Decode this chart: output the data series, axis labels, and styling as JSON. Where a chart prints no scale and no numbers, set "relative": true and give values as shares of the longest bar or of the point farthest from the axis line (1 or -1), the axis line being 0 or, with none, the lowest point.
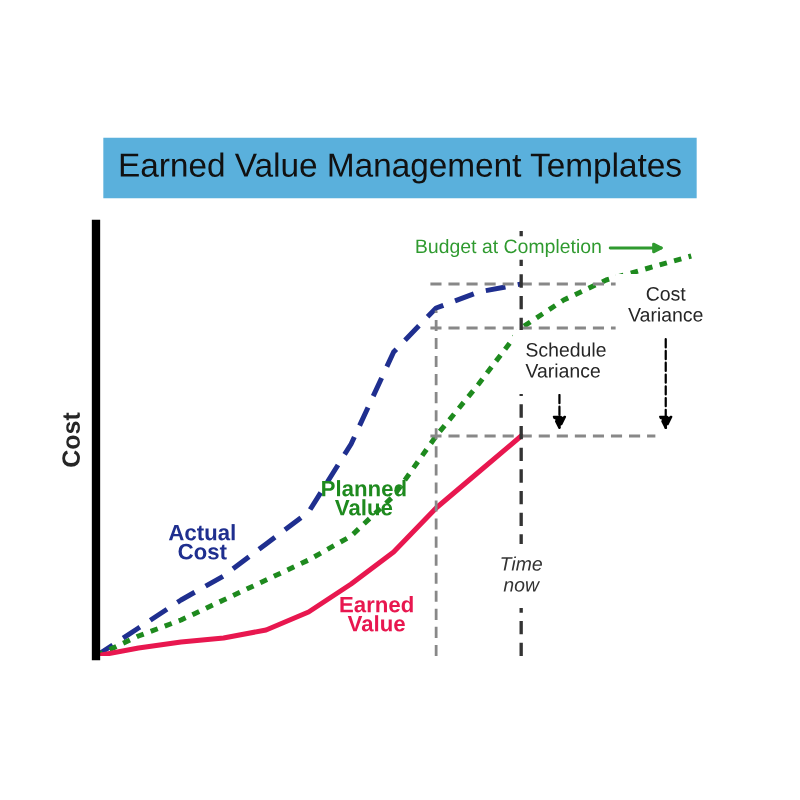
{
  "chart_data": {
    "type": "line",
    "title": "Earned Value Management Templates",
    "ylabel": "Cost",
    "relative": true,
    "categories": [
      null,
      null,
      null,
      null,
      null,
      null,
      null,
      null,
      null,
      null,
      null,
      null,
      null,
      null,
      null
    ],
    "series": [
      {
        "name": "Actual Cost",
        "color": "#1f2f8f",
        "line_style": "dashed",
        "values": [
          0,
          0.07,
          0.14,
          0.2,
          0.28,
          0.36,
          0.53,
          0.76,
          0.87,
          0.91,
          0.93,
          null,
          null,
          null,
          null
        ]
      },
      {
        "name": "Planned Value",
        "color": "#1e8a1e",
        "line_style": "dotted",
        "values": [
          0,
          0.05,
          0.09,
          0.14,
          0.19,
          0.24,
          0.3,
          0.4,
          0.55,
          0.68,
          0.82,
          0.89,
          0.94,
          0.97,
          1
        ]
      },
      {
        "name": "Earned Value",
        "color": "#e8174f",
        "line_style": "solid",
        "values": [
          0,
          0.02,
          0.035,
          0.045,
          0.065,
          0.11,
          0.18,
          0.26,
          0.37,
          0.46,
          0.55,
          null,
          null,
          null,
          null
        ]
      }
    ],
    "ref_lines": [
      {
        "axis": "y",
        "value": 0.55,
        "label": null,
        "color": "#888888",
        "line_style": "dashed"
      },
      {
        "axis": "y",
        "value": 0.82,
        "label": null,
        "color": "#888888",
        "line_style": "dashed"
      },
      {
        "axis": "y",
        "value": 0.93,
        "label": null,
        "color": "#888888",
        "line_style": "dashed"
      }
    ],
    "annotations": [
      "Budget at Completion",
      "Schedule Variance",
      "Cost Variance",
      "Time now"
    ],
    "grid": false,
    "legend": false,
    "marker": "none"
  }
}
